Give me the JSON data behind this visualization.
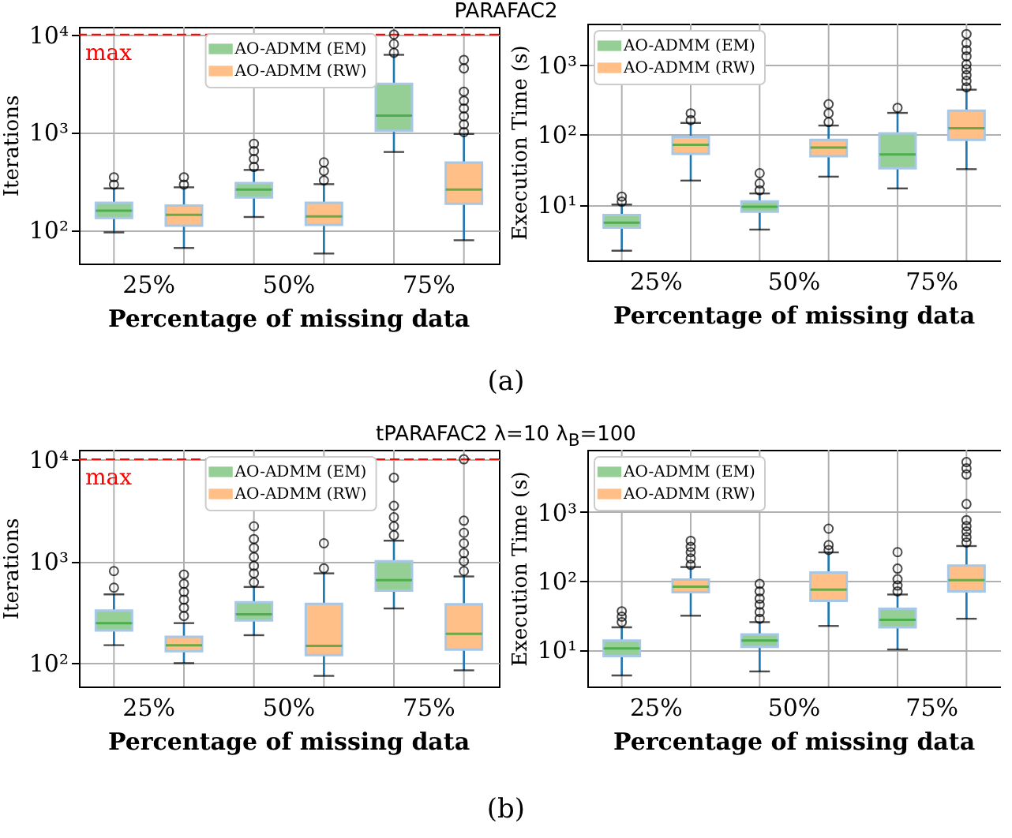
{
  "chart_data": [
    {
      "type": "box",
      "title": "PARAFAC2",
      "annotations": [
        "(a)"
      ],
      "xlabel": "Percentage of missing data",
      "ylabel": "Iterations",
      "categories": [
        "25%",
        "50%",
        "75%"
      ],
      "log": "y",
      "ylim": [
        45,
        12000
      ],
      "yticks": [
        {
          "value": 100,
          "label": "10²"
        },
        {
          "value": 1000,
          "label": "10³"
        },
        {
          "value": 10000,
          "label": "10⁴"
        }
      ],
      "grid": true,
      "legend": "top",
      "marker": "circle",
      "ref_lines": [
        {
          "axis": "y",
          "value": 10000,
          "label": "max",
          "color": "#ff0000",
          "line_style": "dashed"
        }
      ],
      "series": [
        {
          "name": "AO-ADMM (EM)",
          "color": "#96cf96",
          "boxes": [
            {
              "low": 94,
              "q1": 132,
              "median": 157,
              "q3": 189,
              "high": 265,
              "outliers": [
                290,
                345
              ]
            },
            {
              "low": 135,
              "q1": 214,
              "median": 258,
              "q3": 300,
              "high": 410,
              "outliers": [
                440,
                530,
                640,
                760
              ]
            },
            {
              "low": 626,
              "q1": 1030,
              "median": 1480,
              "q3": 3130,
              "high": 6200,
              "outliers": [
                6500,
                8000,
                10000
              ]
            }
          ]
        },
        {
          "name": "AO-ADMM (RW)",
          "color": "#ffbf86",
          "boxes": [
            {
              "low": 65,
              "q1": 110,
              "median": 142,
              "q3": 177,
              "high": 272,
              "outliers": [
                290,
                345
              ]
            },
            {
              "low": 57,
              "q1": 112,
              "median": 137,
              "q3": 189,
              "high": 293,
              "outliers": [
                320,
                400,
                490
              ]
            },
            {
              "low": 78,
              "q1": 184,
              "median": 258,
              "q3": 488,
              "high": 957,
              "outliers": [
                1000,
                1200,
                1450,
                1750,
                2100,
                2600,
                4500,
                5500
              ]
            }
          ]
        }
      ]
    },
    {
      "type": "box",
      "xlabel": "Percentage of missing data",
      "ylabel": "Execution Time (s)",
      "categories": [
        "25%",
        "50%",
        "75%"
      ],
      "log": "y",
      "ylim": [
        1.6,
        3800
      ],
      "yticks": [
        {
          "value": 10,
          "label": "10¹"
        },
        {
          "value": 100,
          "label": "10²"
        },
        {
          "value": 1000,
          "label": "10³"
        }
      ],
      "grid": true,
      "legend": "top left",
      "marker": "circle",
      "series": [
        {
          "name": "AO-ADMM (EM)",
          "color": "#96cf96",
          "boxes": [
            {
              "low": 2.2,
              "q1": 4.7,
              "median": 5.5,
              "q3": 7.1,
              "high": 10,
              "outliers": [
                11,
                13
              ]
            },
            {
              "low": 4.4,
              "q1": 7.9,
              "median": 9.3,
              "q3": 11.1,
              "high": 14.4,
              "outliers": [
                16,
                20,
                28
              ]
            },
            {
              "low": 17,
              "q1": 33,
              "median": 52,
              "q3": 104,
              "high": 203,
              "outliers": [
                240
              ]
            }
          ]
        },
        {
          "name": "AO-ADMM (RW)",
          "color": "#ffbf86",
          "boxes": [
            {
              "low": 22,
              "q1": 53,
              "median": 71,
              "q3": 92,
              "high": 146,
              "outliers": [
                160,
                200
              ]
            },
            {
              "low": 25,
              "q1": 49,
              "median": 65,
              "q3": 84,
              "high": 134,
              "outliers": [
                150,
                200,
                270
              ]
            },
            {
              "low": 32,
              "q1": 84,
              "median": 123,
              "q3": 218,
              "high": 435,
              "outliers": [
                470,
                580,
                700,
                850,
                1000,
                1300,
                1600,
                2000,
                2700
              ]
            }
          ]
        }
      ]
    },
    {
      "type": "box",
      "title": "tPARAFAC2 λ=10 λ$_{B}$=100",
      "annotations": [
        "(b)"
      ],
      "xlabel": "Percentage of missing data",
      "ylabel": "Iterations",
      "categories": [
        "25%",
        "50%",
        "75%"
      ],
      "log": "y",
      "ylim": [
        59,
        12400
      ],
      "yticks": [
        {
          "value": 100,
          "label": "10²"
        },
        {
          "value": 1000,
          "label": "10³"
        },
        {
          "value": 10000,
          "label": "10⁴"
        }
      ],
      "grid": true,
      "legend": "top",
      "marker": "circle",
      "ref_lines": [
        {
          "axis": "y",
          "value": 10000,
          "label": "max",
          "color": "#ff0000",
          "line_style": "dashed"
        }
      ],
      "series": [
        {
          "name": "AO-ADMM (EM)",
          "color": "#96cf96",
          "boxes": [
            {
              "low": 150,
              "q1": 209,
              "median": 247,
              "q3": 328,
              "high": 473,
              "outliers": [
                550,
                800
              ]
            },
            {
              "low": 188,
              "q1": 262,
              "median": 302,
              "q3": 396,
              "high": 559,
              "outliers": [
                620,
                760,
                900,
                1100,
                1350,
                1650,
                2200
              ]
            },
            {
              "low": 344,
              "q1": 514,
              "median": 651,
              "q3": 1000,
              "high": 1590,
              "outliers": [
                1800,
                2200,
                2700,
                3500,
                6600
              ]
            }
          ]
        },
        {
          "name": "AO-ADMM (RW)",
          "color": "#ffbf86",
          "boxes": [
            {
              "low": 100,
              "q1": 131,
              "median": 150,
              "q3": 181,
              "high": 247,
              "outliers": [
                290,
                350,
                420,
                500,
                600,
                740
              ]
            },
            {
              "low": 75,
              "q1": 120,
              "median": 148,
              "q3": 382,
              "high": 760,
              "outliers": [
                850,
                1500
              ]
            },
            {
              "low": 85,
              "q1": 136,
              "median": 194,
              "q3": 378,
              "high": 709,
              "outliers": [
                800,
                1000,
                1200,
                1500,
                1900,
                2500,
                10000
              ]
            }
          ]
        }
      ]
    },
    {
      "type": "box",
      "xlabel": "Percentage of missing data",
      "ylabel": "Execution Time (s)",
      "categories": [
        "25%",
        "50%",
        "75%"
      ],
      "log": "y",
      "ylim": [
        2.9,
        8000
      ],
      "yticks": [
        {
          "value": 10,
          "label": "10¹"
        },
        {
          "value": 100,
          "label": "10²"
        },
        {
          "value": 1000,
          "label": "10³"
        }
      ],
      "grid": true,
      "legend": "top left",
      "marker": "circle",
      "series": [
        {
          "name": "AO-ADMM (EM)",
          "color": "#96cf96",
          "boxes": [
            {
              "low": 4.2,
              "q1": 8,
              "median": 10.4,
              "q3": 13.5,
              "high": 21,
              "outliers": [
                25,
                30,
                36
              ]
            },
            {
              "low": 4.8,
              "q1": 10.9,
              "median": 13.5,
              "q3": 16.6,
              "high": 25,
              "outliers": [
                28,
                35,
                45,
                55,
                70,
                90
              ]
            },
            {
              "low": 10,
              "q1": 21,
              "median": 27,
              "q3": 39,
              "high": 63,
              "outliers": [
                70,
                85,
                105,
                150,
                260
              ]
            }
          ]
        },
        {
          "name": "AO-ADMM (RW)",
          "color": "#ffbf86",
          "boxes": [
            {
              "low": 31,
              "q1": 68,
              "median": 82,
              "q3": 104,
              "high": 158,
              "outliers": [
                170,
                210,
                260,
                310,
                380
              ]
            },
            {
              "low": 22,
              "q1": 51,
              "median": 74,
              "q3": 132,
              "high": 258,
              "outliers": [
                280,
                330,
                570
              ]
            },
            {
              "low": 28,
              "q1": 70,
              "median": 102,
              "q3": 166,
              "high": 319,
              "outliers": [
                360,
                430,
                520,
                620,
                760,
                1300,
                3500,
                4300,
                5300
              ]
            }
          ]
        }
      ]
    }
  ]
}
